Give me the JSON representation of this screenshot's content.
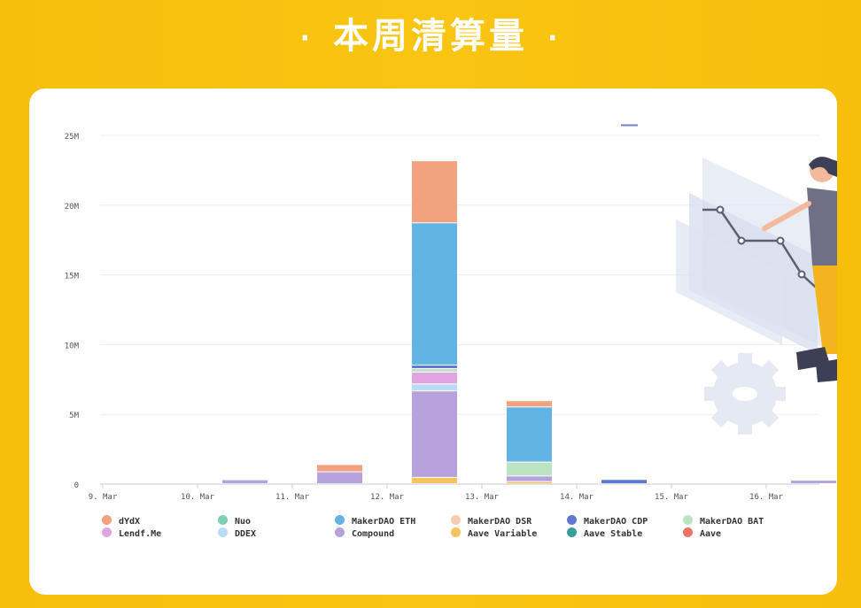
{
  "header": {
    "title": "本周清算量",
    "dot": "·"
  },
  "chart_data": {
    "type": "bar",
    "stacked": true,
    "categories": [
      "9. Mar",
      "10. Mar",
      "11. Mar",
      "12. Mar",
      "13. Mar",
      "14. Mar",
      "15. Mar",
      "16. Mar"
    ],
    "y_ticks": [
      "0",
      "5M",
      "10M",
      "15M",
      "20M",
      "25M"
    ],
    "ylim": [
      0,
      25000000
    ],
    "grid": true,
    "legend_position": "bottom",
    "series": [
      {
        "name": "Aave Variable",
        "color": "#F6C35C",
        "values": [
          0,
          0,
          0,
          450000,
          150000,
          0,
          0,
          0
        ]
      },
      {
        "name": "Compound",
        "color": "#B8A2DE",
        "values": [
          0,
          280000,
          850000,
          6200000,
          400000,
          0,
          0,
          250000
        ]
      },
      {
        "name": "DDEX",
        "color": "#B9DCF4",
        "values": [
          0,
          0,
          0,
          500000,
          0,
          0,
          0,
          0
        ]
      },
      {
        "name": "Lendf.Me",
        "color": "#E1A4E1",
        "values": [
          0,
          0,
          0,
          850000,
          0,
          0,
          0,
          0
        ]
      },
      {
        "name": "MakerDAO BAT",
        "color": "#BCE3C2",
        "values": [
          0,
          0,
          0,
          250000,
          1000000,
          0,
          0,
          0
        ]
      },
      {
        "name": "MakerDAO CDP",
        "color": "#5E77D5",
        "values": [
          0,
          0,
          0,
          250000,
          0,
          300000,
          0,
          0
        ]
      },
      {
        "name": "MakerDAO ETH",
        "color": "#62B4E5",
        "values": [
          0,
          0,
          0,
          10200000,
          3950000,
          0,
          0,
          0
        ]
      },
      {
        "name": "dYdX",
        "color": "#F2A27E",
        "values": [
          0,
          0,
          520000,
          4450000,
          450000,
          0,
          0,
          0
        ]
      }
    ],
    "legend": [
      {
        "name": "dYdX",
        "color": "#F2A27E"
      },
      {
        "name": "Nuo",
        "color": "#7ED0B0"
      },
      {
        "name": "MakerDAO ETH",
        "color": "#62B4E5"
      },
      {
        "name": "MakerDAO DSR",
        "color": "#F6CDB0"
      },
      {
        "name": "MakerDAO CDP",
        "color": "#5E77D5"
      },
      {
        "name": "MakerDAO BAT",
        "color": "#BCE3C2"
      },
      {
        "name": "Lendf.Me",
        "color": "#E1A4E1"
      },
      {
        "name": "DDEX",
        "color": "#B9DCF4"
      },
      {
        "name": "Compound",
        "color": "#B8A2DE"
      },
      {
        "name": "Aave Variable",
        "color": "#F6C35C"
      },
      {
        "name": "Aave Stable",
        "color": "#3A9E9E"
      },
      {
        "name": "Aave",
        "color": "#EC7363"
      }
    ]
  },
  "illustration": {
    "icon": "person-presenting-chart-icon"
  }
}
